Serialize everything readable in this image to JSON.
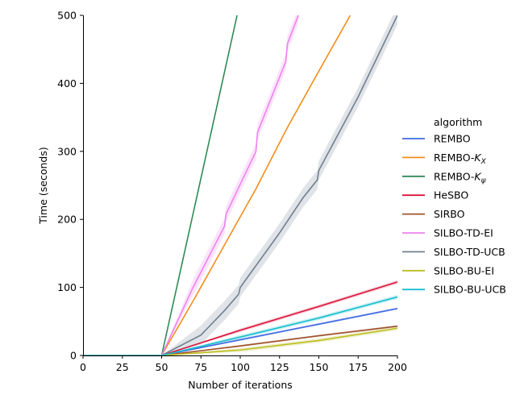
{
  "chart_data": {
    "type": "line",
    "title": "",
    "xlabel": "Number of iterations",
    "ylabel": "Time (seconds)",
    "xlim": [
      0,
      200
    ],
    "ylim": [
      0,
      500
    ],
    "xticks": [
      0,
      25,
      50,
      75,
      100,
      125,
      150,
      175,
      200
    ],
    "yticks": [
      0,
      100,
      200,
      300,
      400,
      500
    ],
    "grid": false,
    "legend": {
      "title": "algorithm",
      "placement": "right outside",
      "entries": [
        {
          "label": "REMBO",
          "sub": "",
          "color": "#4169e1"
        },
        {
          "label": "REMBO-",
          "italic": "K",
          "sub": "X",
          "color": "#f28e1c"
        },
        {
          "label": "REMBO-",
          "italic": "K",
          "sub": "ψ",
          "color": "#2e8b57"
        },
        {
          "label": "HeSBO",
          "sub": "",
          "color": "#dc143c"
        },
        {
          "label": "SIRBO",
          "sub": "",
          "color": "#a0522d"
        },
        {
          "label": "SILBO-TD-EI",
          "sub": "",
          "color": "#ee82ee"
        },
        {
          "label": "SILBO-TD-UCB",
          "sub": "",
          "color": "#708090"
        },
        {
          "label": "SILBO-BU-EI",
          "sub": "",
          "color": "#bcbd22"
        },
        {
          "label": "SILBO-BU-UCB",
          "sub": "",
          "color": "#17becf"
        }
      ]
    },
    "series": [
      {
        "name": "REMBO",
        "color": "#4169e1",
        "x": [
          0,
          50,
          100,
          150,
          200
        ],
        "y": [
          0,
          0,
          23,
          46,
          69
        ],
        "band": 1.5
      },
      {
        "name": "REMBO-K_X",
        "color": "#f28e1c",
        "x": [
          0,
          50,
          70,
          110,
          130,
          150,
          170
        ],
        "y": [
          0,
          0,
          80,
          245,
          335,
          418,
          500
        ],
        "band": 1.5
      },
      {
        "name": "REMBO-K_psi",
        "color": "#2e8b57",
        "x": [
          0,
          50,
          98
        ],
        "y": [
          0,
          0,
          500
        ],
        "band": 1
      },
      {
        "name": "HeSBO",
        "color": "#dc143c",
        "x": [
          0,
          50,
          100,
          150,
          200
        ],
        "y": [
          0,
          0,
          37,
          72,
          108
        ],
        "band": 2.5
      },
      {
        "name": "SIRBO",
        "color": "#a0522d",
        "x": [
          0,
          50,
          100,
          150,
          200
        ],
        "y": [
          0,
          0,
          14,
          29,
          43
        ],
        "band": 1.5
      },
      {
        "name": "SILBO-TD-EI",
        "color": "#ee82ee",
        "x": [
          0,
          50,
          70,
          90,
          91,
          110,
          111,
          129,
          130,
          137
        ],
        "y": [
          0,
          0,
          100,
          190,
          208,
          300,
          328,
          432,
          458,
          500
        ],
        "band": 12
      },
      {
        "name": "SILBO-TD-UCB",
        "color": "#708090",
        "x": [
          0,
          50,
          75,
          90,
          99,
          100,
          125,
          140,
          149,
          150,
          175,
          200
        ],
        "y": [
          0,
          0,
          30,
          66,
          90,
          100,
          180,
          232,
          258,
          272,
          380,
          500
        ],
        "band": 14
      },
      {
        "name": "SILBO-BU-EI",
        "color": "#bcbd22",
        "x": [
          0,
          50,
          100,
          150,
          200
        ],
        "y": [
          0,
          0,
          8,
          22,
          40
        ],
        "band": 3
      },
      {
        "name": "SILBO-BU-UCB",
        "color": "#17becf",
        "x": [
          0,
          50,
          100,
          150,
          200
        ],
        "y": [
          0,
          0,
          27,
          55,
          86
        ],
        "band": 3
      }
    ]
  }
}
